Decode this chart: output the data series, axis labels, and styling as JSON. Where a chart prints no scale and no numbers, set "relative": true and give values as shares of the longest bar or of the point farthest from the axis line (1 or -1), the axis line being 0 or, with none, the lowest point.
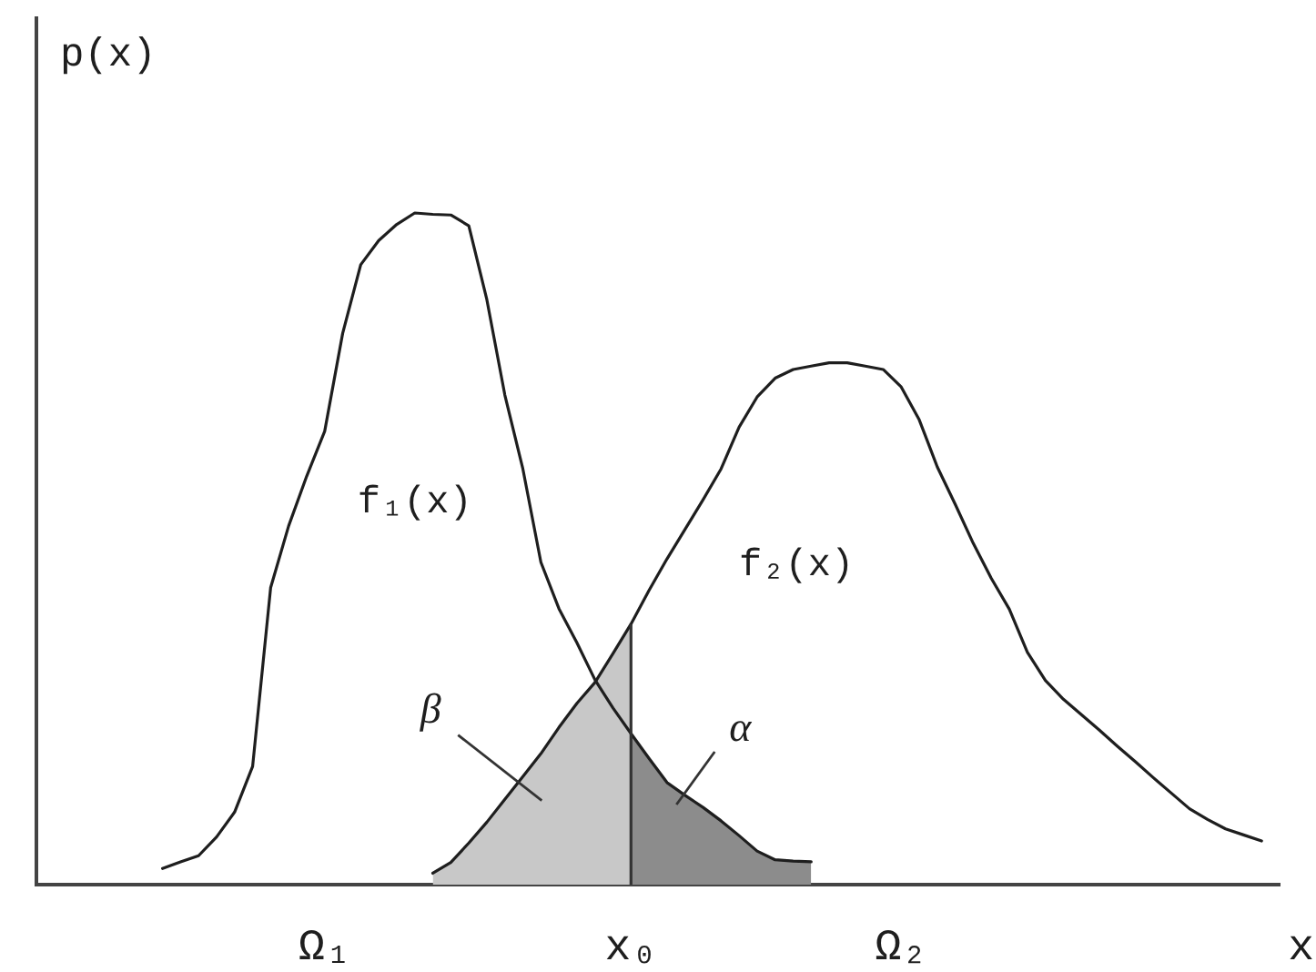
{
  "chart_data": {
    "type": "line",
    "relative": true,
    "xlabel": "x",
    "ylabel": "p(x)",
    "categories": [
      null,
      null,
      null,
      null,
      null,
      null,
      null,
      null,
      null,
      null,
      null,
      null,
      null,
      null,
      null,
      null,
      "Ω₁",
      null,
      null,
      null,
      null,
      null,
      null,
      null,
      null,
      null,
      null,
      null,
      null,
      null,
      null,
      null,
      null,
      "x₀",
      null,
      null,
      null,
      null,
      null,
      null,
      null,
      null,
      null,
      null,
      null,
      null,
      null,
      null,
      "Ω₂",
      null,
      null,
      null,
      null,
      null,
      null,
      null,
      null,
      null,
      null,
      null,
      null,
      null,
      null,
      null,
      null,
      null,
      null,
      null,
      null,
      null
    ],
    "series": [
      {
        "name": "f₁(x)",
        "color": "#1e1e1e",
        "values": [
          null,
          null,
          null,
          null,
          null,
          null,
          null,
          0.024,
          0.034,
          0.043,
          0.071,
          0.108,
          0.176,
          0.442,
          0.534,
          0.608,
          0.675,
          0.821,
          0.923,
          0.959,
          0.983,
          1,
          0.998,
          0.997,
          0.981,
          0.871,
          0.729,
          0.619,
          0.48,
          0.411,
          0.36,
          0.305,
          0.263,
          0.225,
          0.188,
          0.152,
          0.133,
          0.115,
          0.095,
          0.073,
          0.05,
          0.037,
          0.035,
          0.034,
          null,
          null,
          null,
          null,
          null,
          null,
          null,
          null,
          null,
          null,
          null,
          null,
          null,
          null,
          null,
          null,
          null,
          null,
          null,
          null,
          null,
          null,
          null,
          null,
          null,
          null
        ]
      },
      {
        "name": "f₂(x)",
        "color": "#1e1e1e",
        "values": [
          null,
          null,
          null,
          null,
          null,
          null,
          null,
          null,
          null,
          null,
          null,
          null,
          null,
          null,
          null,
          null,
          null,
          null,
          null,
          null,
          null,
          null,
          0.017,
          0.033,
          0.062,
          0.093,
          0.127,
          0.161,
          0.195,
          0.234,
          0.27,
          0.301,
          0.344,
          0.388,
          0.438,
          0.485,
          0.529,
          0.573,
          0.619,
          0.681,
          0.726,
          0.754,
          0.767,
          0.772,
          0.777,
          0.777,
          0.772,
          0.767,
          0.741,
          0.692,
          0.622,
          0.566,
          0.508,
          0.456,
          0.41,
          0.346,
          0.304,
          0.276,
          0.253,
          0.23,
          0.206,
          0.183,
          0.159,
          0.136,
          0.113,
          0.097,
          0.083,
          0.074,
          0.065,
          null
        ]
      },
      {
        "name": "β",
        "type": "area",
        "color": "#c8c8c8",
        "values": [
          null,
          null,
          null,
          null,
          null,
          null,
          null,
          null,
          null,
          null,
          null,
          null,
          null,
          null,
          null,
          null,
          null,
          null,
          null,
          null,
          null,
          null,
          0.017,
          0.033,
          0.062,
          0.093,
          0.127,
          0.161,
          0.195,
          0.234,
          0.27,
          0.301,
          0.344,
          0.388,
          null,
          null,
          null,
          null,
          null,
          null,
          null,
          null,
          null,
          null,
          null,
          null,
          null,
          null,
          null,
          null,
          null,
          null,
          null,
          null,
          null,
          null,
          null,
          null,
          null,
          null,
          null,
          null,
          null,
          null,
          null,
          null,
          null,
          null,
          null,
          null
        ]
      },
      {
        "name": "α",
        "type": "area",
        "color": "#8c8c8c",
        "values": [
          null,
          null,
          null,
          null,
          null,
          null,
          null,
          null,
          null,
          null,
          null,
          null,
          null,
          null,
          null,
          null,
          null,
          null,
          null,
          null,
          null,
          null,
          null,
          null,
          null,
          null,
          null,
          null,
          null,
          null,
          null,
          null,
          null,
          0.225,
          0.188,
          0.152,
          0.133,
          0.115,
          0.095,
          0.073,
          0.05,
          0.037,
          0.035,
          0.034,
          null,
          null,
          null,
          null,
          null,
          null,
          null,
          null,
          null,
          null,
          null,
          null,
          null,
          null,
          null,
          null,
          null,
          null,
          null,
          null,
          null,
          null,
          null,
          null,
          null,
          null
        ]
      }
    ],
    "ref_lines": [
      {
        "axis": "x",
        "value": "x₀",
        "color": "#333333"
      }
    ],
    "marker": "none",
    "grid": false,
    "legend": false
  }
}
